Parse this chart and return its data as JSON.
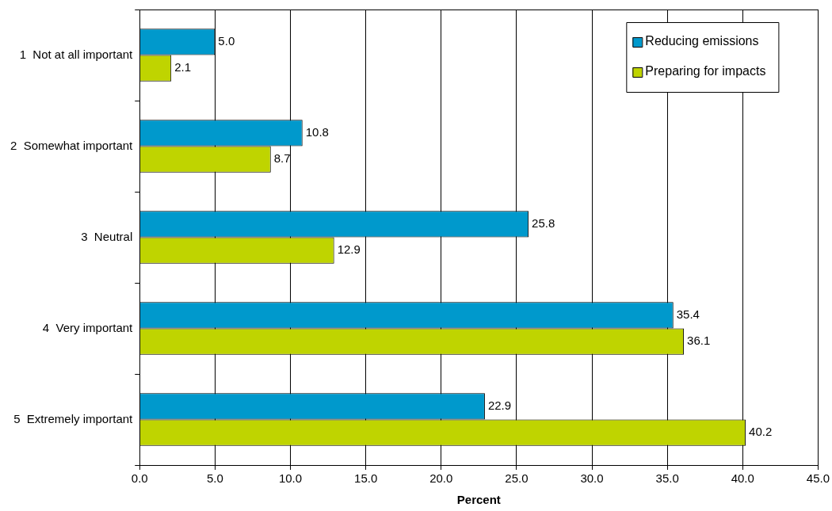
{
  "chart_data": {
    "type": "bar",
    "orientation": "horizontal",
    "categories": [
      "1  Not at all important",
      "2  Somewhat important",
      "3  Neutral",
      "4  Very important",
      "5  Extremely important"
    ],
    "series": [
      {
        "name": "Reducing emissions",
        "color": "#0099cc",
        "values": [
          5.0,
          10.8,
          25.8,
          35.4,
          22.9
        ],
        "value_labels": [
          "5.0",
          "10.8",
          "25.8",
          "35.4",
          "22.9"
        ]
      },
      {
        "name": "Preparing for impacts",
        "color": "#bfd400",
        "values": [
          2.1,
          8.7,
          12.9,
          36.1,
          40.2
        ],
        "value_labels": [
          "2.1",
          "8.7",
          "12.9",
          "36.1",
          "40.2"
        ]
      }
    ],
    "xlabel": "Percent",
    "xlim": [
      0,
      45
    ],
    "xticks": [
      {
        "value": 0,
        "label": "0.0"
      },
      {
        "value": 5,
        "label": "5.0"
      },
      {
        "value": 10,
        "label": "10.0"
      },
      {
        "value": 15,
        "label": "15.0"
      },
      {
        "value": 20,
        "label": "20.0"
      },
      {
        "value": 25,
        "label": "25.0"
      },
      {
        "value": 30,
        "label": "30.0"
      },
      {
        "value": 35,
        "label": "35.0"
      },
      {
        "value": 40,
        "label": "40.0"
      },
      {
        "value": 45,
        "label": "45.0"
      }
    ],
    "grid": "x",
    "legend": "top right"
  }
}
